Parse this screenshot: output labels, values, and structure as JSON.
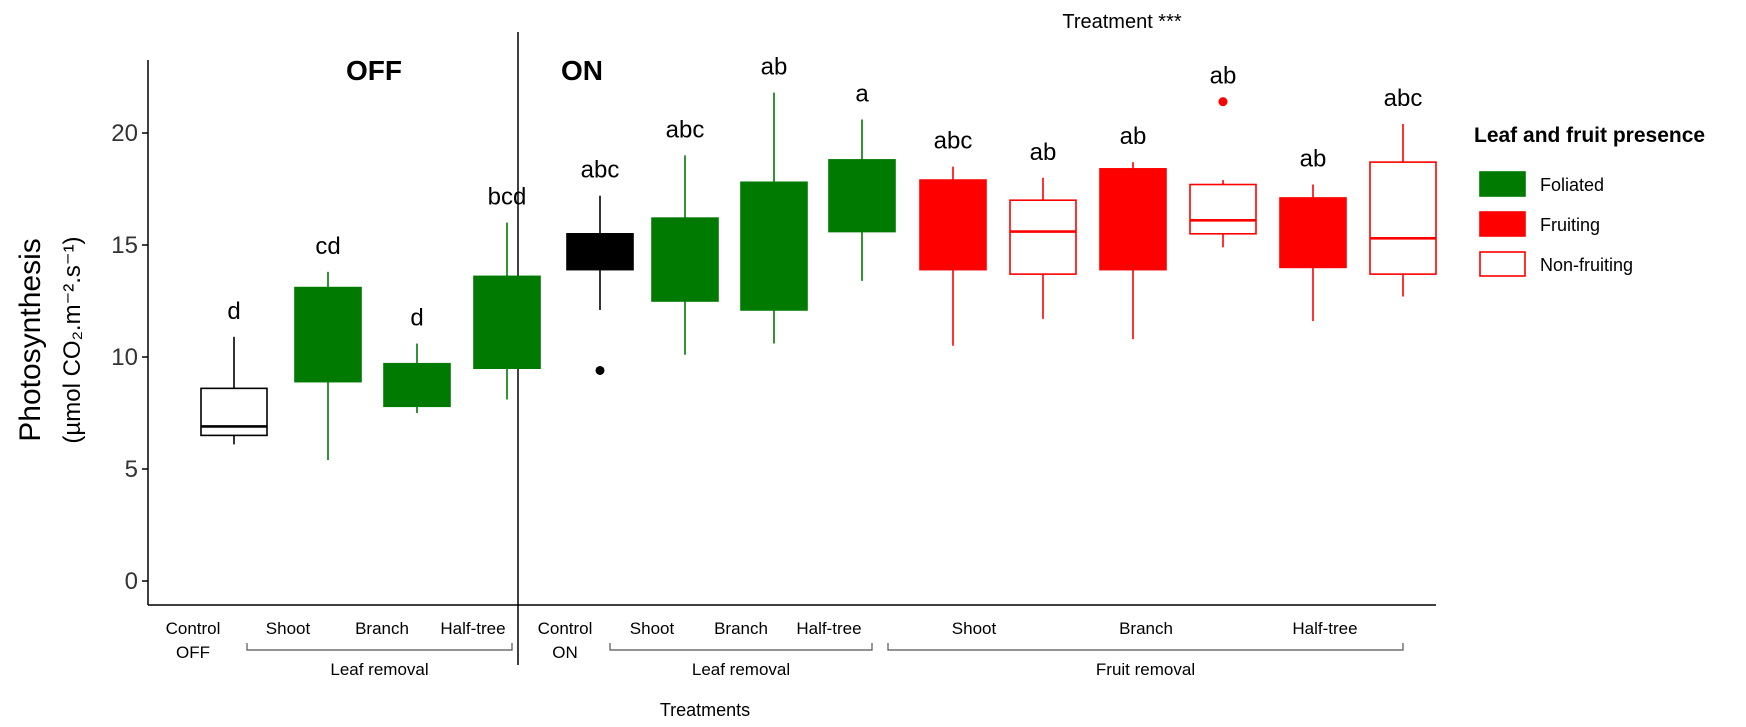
{
  "chart_data": {
    "type": "boxplot",
    "annotation": "Treatment  ***",
    "ylabel_line1": "Photosynthesis",
    "ylabel_line2": "(µmol CO₂.m⁻².s⁻¹)",
    "xlabel": "Treatments",
    "ylim": [
      0,
      23
    ],
    "yticks": [
      0,
      5,
      10,
      15,
      20
    ],
    "grid": false,
    "legend_position": "right",
    "panels": [
      {
        "label": "OFF"
      },
      {
        "label": "ON"
      }
    ],
    "legend": {
      "title": "Leaf and fruit presence",
      "items": [
        {
          "label": "Foliated",
          "fill": "#007a00",
          "stroke": "#007a00"
        },
        {
          "label": "Fruiting",
          "fill": "#ff0000",
          "stroke": "#ff0000"
        },
        {
          "label": "Non-fruiting",
          "fill": "#ffffff",
          "stroke": "#ff0000"
        }
      ]
    },
    "groups": [
      {
        "label": "Leaf removal"
      },
      {
        "label": "Leaf removal"
      },
      {
        "label": "Fruit removal"
      }
    ],
    "category_labels": [
      {
        "text": "Control OFF"
      },
      {
        "text": "Shoot"
      },
      {
        "text": "Branch"
      },
      {
        "text": "Half-tree"
      },
      {
        "text": "Control ON"
      },
      {
        "text": "Shoot"
      },
      {
        "text": "Branch"
      },
      {
        "text": "Half-tree"
      },
      {
        "text": "Shoot"
      },
      {
        "text": "Branch"
      },
      {
        "text": "Half-tree"
      }
    ],
    "boxes": [
      {
        "fill": "#ffffff",
        "stroke": "#000000",
        "median_color": "#000000",
        "whisker_low": 6.1,
        "q1": 6.5,
        "median": 6.9,
        "q3": 8.6,
        "whisker_high": 10.9,
        "outliers": [],
        "letter": "d"
      },
      {
        "fill": "#007a00",
        "stroke": "#007a00",
        "median_color": "#007a00",
        "whisker_low": 5.4,
        "q1": 8.9,
        "median": 13.0,
        "q3": 13.1,
        "whisker_high": 13.8,
        "outliers": [],
        "letter": "cd"
      },
      {
        "fill": "#007a00",
        "stroke": "#007a00",
        "median_color": "#007a00",
        "whisker_low": 7.5,
        "q1": 7.8,
        "median": 7.9,
        "q3": 9.7,
        "whisker_high": 10.6,
        "outliers": [],
        "letter": "d"
      },
      {
        "fill": "#007a00",
        "stroke": "#007a00",
        "median_color": "#007a00",
        "whisker_low": 8.1,
        "q1": 9.5,
        "median": 9.7,
        "q3": 13.6,
        "whisker_high": 16.0,
        "outliers": [],
        "letter": "bcd"
      },
      {
        "fill": "#000000",
        "stroke": "#000000",
        "median_color": "#000000",
        "whisker_low": 12.1,
        "q1": 13.9,
        "median": 14.2,
        "q3": 15.5,
        "whisker_high": 17.2,
        "outliers": [
          9.4
        ],
        "letter": "abc"
      },
      {
        "fill": "#007a00",
        "stroke": "#007a00",
        "median_color": "#007a00",
        "whisker_low": 10.1,
        "q1": 12.5,
        "median": 12.7,
        "q3": 16.2,
        "whisker_high": 19.0,
        "outliers": [],
        "letter": "abc"
      },
      {
        "fill": "#007a00",
        "stroke": "#007a00",
        "median_color": "#007a00",
        "whisker_low": 10.6,
        "q1": 12.1,
        "median": 12.3,
        "q3": 17.8,
        "whisker_high": 21.8,
        "outliers": [],
        "letter": "ab"
      },
      {
        "fill": "#007a00",
        "stroke": "#007a00",
        "median_color": "#007a00",
        "whisker_low": 13.4,
        "q1": 15.6,
        "median": 15.8,
        "q3": 18.8,
        "whisker_high": 20.6,
        "outliers": [],
        "letter": "a"
      },
      {
        "fill": "#ff0000",
        "stroke": "#ff0000",
        "median_color": "#ff0000",
        "whisker_low": 10.5,
        "q1": 13.9,
        "median": 14.1,
        "q3": 17.9,
        "whisker_high": 18.5,
        "outliers": [],
        "letter": "abc"
      },
      {
        "fill": "#ffffff",
        "stroke": "#ff0000",
        "median_color": "#ff0000",
        "whisker_low": 11.7,
        "q1": 13.7,
        "median": 15.6,
        "q3": 17.0,
        "whisker_high": 18.0,
        "outliers": [],
        "letter": "ab"
      },
      {
        "fill": "#ff0000",
        "stroke": "#ff0000",
        "median_color": "#ff0000",
        "whisker_low": 10.8,
        "q1": 13.9,
        "median": 14.1,
        "q3": 18.4,
        "whisker_high": 18.7,
        "outliers": [],
        "letter": "ab"
      },
      {
        "fill": "#ffffff",
        "stroke": "#ff0000",
        "median_color": "#ff0000",
        "whisker_low": 14.9,
        "q1": 15.5,
        "median": 16.1,
        "q3": 17.7,
        "whisker_high": 17.9,
        "outliers": [
          21.4
        ],
        "letter": "ab"
      },
      {
        "fill": "#ff0000",
        "stroke": "#ff0000",
        "median_color": "#ff0000",
        "whisker_low": 11.6,
        "q1": 14.0,
        "median": 14.2,
        "q3": 17.1,
        "whisker_high": 17.7,
        "outliers": [],
        "letter": "ab"
      },
      {
        "fill": "#ffffff",
        "stroke": "#ff0000",
        "median_color": "#ff0000",
        "whisker_low": 12.7,
        "q1": 13.7,
        "median": 15.3,
        "q3": 18.7,
        "whisker_high": 20.4,
        "outliers": [],
        "letter": "abc"
      }
    ]
  }
}
